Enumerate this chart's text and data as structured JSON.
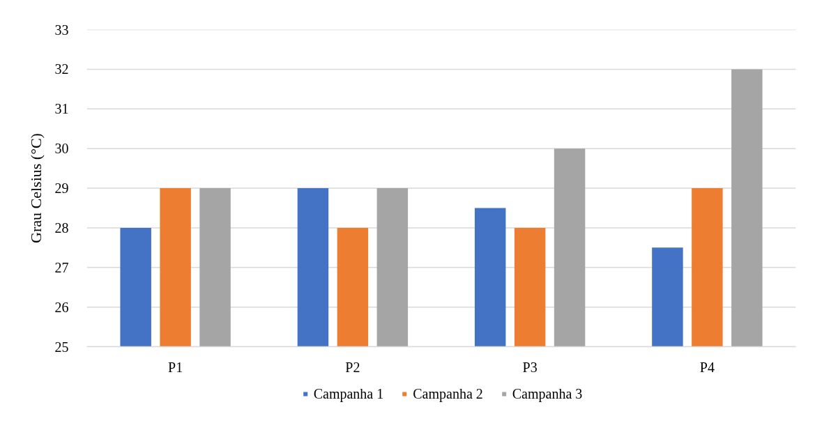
{
  "chart_data": {
    "type": "bar",
    "ylabel": "Grau Celsius (°C)",
    "categories": [
      "P1",
      "P2",
      "P3",
      "P4"
    ],
    "series": [
      {
        "name": "Campanha 1",
        "color": "#4472c4",
        "values": [
          28,
          29,
          28.5,
          27.5
        ]
      },
      {
        "name": "Campanha 2",
        "color": "#ed7d31",
        "values": [
          29,
          28,
          28,
          29
        ]
      },
      {
        "name": "Campanha 3",
        "color": "#a5a5a5",
        "values": [
          29,
          29,
          30,
          32
        ]
      }
    ],
    "ylim": [
      25,
      33
    ],
    "yticks": [
      25,
      26,
      27,
      28,
      29,
      30,
      31,
      32,
      33
    ],
    "grid": "y",
    "legend": "bottom"
  }
}
